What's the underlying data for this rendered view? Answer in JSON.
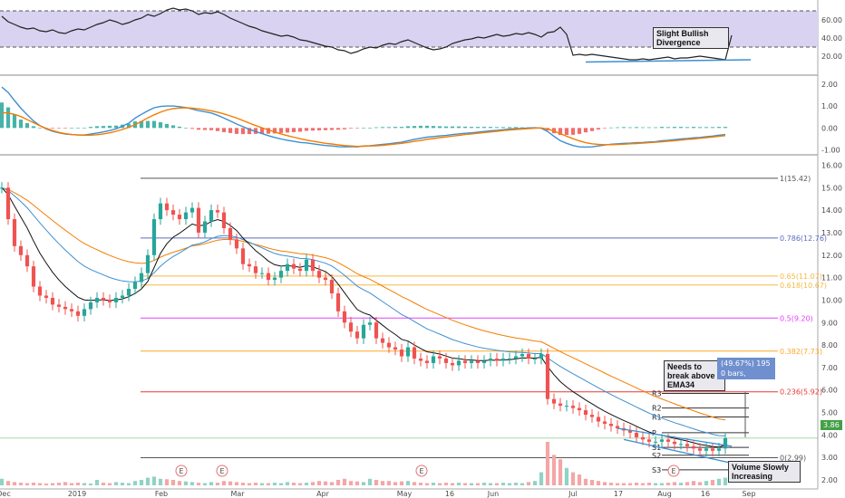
{
  "colors": {
    "up": "#26a69a",
    "down": "#ef5350",
    "rsi_band": "#d9d2f0",
    "ema_fast": "#111111",
    "ema_mid": "#3d8fd1",
    "ema_slow": "#f57c00",
    "macd": "#3d8fd1",
    "signal": "#f57c00"
  },
  "annotations": {
    "rsi_note": "Slight Bullish Divergence",
    "ema_note": "Needs to break above EMA34",
    "volume_note": "Volume Slowly Increasing",
    "measure_line1": "(49.67%) 195",
    "measure_line2": "0 bars,",
    "last_price": "3.86"
  },
  "chart_data": [
    {
      "type": "line",
      "panel": "RSI",
      "yticks": [
        "20.00",
        "40.00",
        "60.00"
      ],
      "ylim": [
        0,
        80
      ],
      "band": [
        30,
        70
      ],
      "series": [
        {
          "values": [
            64,
            58,
            55,
            52,
            50,
            51,
            48,
            47,
            49,
            46,
            45,
            48,
            50,
            49,
            52,
            55,
            57,
            60,
            58,
            55,
            57,
            60,
            62,
            66,
            64,
            67,
            71,
            73,
            71,
            72,
            70,
            66,
            68,
            67,
            69,
            66,
            62,
            59,
            56,
            53,
            51,
            48,
            46,
            44,
            42,
            43,
            41,
            38,
            37,
            35,
            33,
            31,
            30,
            27,
            26,
            23,
            25,
            28,
            30,
            29,
            32,
            34,
            33,
            36,
            38,
            35,
            32,
            29,
            27,
            28,
            30,
            34,
            36,
            38,
            39,
            41,
            40,
            42,
            44,
            42,
            43,
            45,
            44,
            46,
            44,
            41,
            46,
            47,
            52,
            44,
            21,
            22,
            21,
            22,
            21,
            20,
            19,
            18,
            17,
            16,
            16,
            17,
            16,
            17,
            18,
            19,
            17,
            18,
            18,
            19,
            20,
            19,
            18,
            17,
            16,
            43
          ]
        }
      ]
    },
    {
      "type": "line",
      "panel": "MACD",
      "yticks": [
        "-1.00",
        "0.00",
        "1.00",
        "2.00"
      ],
      "ylim": [
        -1.1,
        2.2
      ],
      "series": [
        {
          "values": [
            1.86,
            1.62,
            1.25,
            0.9,
            0.6,
            0.32,
            0.11,
            -0.04,
            -0.15,
            -0.22,
            -0.28,
            -0.3,
            -0.32,
            -0.32,
            -0.28,
            -0.23,
            -0.18,
            -0.12,
            -0.04,
            0.08,
            0.22,
            0.45,
            0.62,
            0.78,
            0.92,
            0.98,
            1.0,
            1.0,
            0.97,
            0.93,
            0.86,
            0.79,
            0.74,
            0.68,
            0.58,
            0.45,
            0.32,
            0.18,
            0.06,
            -0.06,
            -0.16,
            -0.26,
            -0.35,
            -0.43,
            -0.5,
            -0.56,
            -0.61,
            -0.66,
            -0.68,
            -0.72,
            -0.76,
            -0.8,
            -0.82,
            -0.85,
            -0.86,
            -0.85,
            -0.86,
            -0.82,
            -0.81,
            -0.78,
            -0.75,
            -0.72,
            -0.68,
            -0.65,
            -0.58,
            -0.52,
            -0.47,
            -0.42,
            -0.39,
            -0.36,
            -0.34,
            -0.3,
            -0.27,
            -0.24,
            -0.22,
            -0.19,
            -0.16,
            -0.13,
            -0.11,
            -0.08,
            -0.05,
            -0.03,
            -0.02,
            0.0,
            0.01,
            -0.01,
            -0.16,
            -0.38,
            -0.58,
            -0.7,
            -0.8,
            -0.86,
            -0.87,
            -0.86,
            -0.82,
            -0.78,
            -0.74,
            -0.72,
            -0.7,
            -0.69,
            -0.67,
            -0.66,
            -0.64,
            -0.62,
            -0.58,
            -0.56,
            -0.53,
            -0.5,
            -0.48,
            -0.45,
            -0.43,
            -0.4,
            -0.37,
            -0.33,
            -0.3
          ]
        },
        {
          "values": [
            0.7,
            0.68,
            0.62,
            0.52,
            0.38,
            0.24,
            0.1,
            -0.02,
            -0.12,
            -0.2,
            -0.26,
            -0.3,
            -0.32,
            -0.33,
            -0.33,
            -0.31,
            -0.27,
            -0.22,
            -0.15,
            -0.07,
            0.03,
            0.15,
            0.3,
            0.46,
            0.6,
            0.72,
            0.82,
            0.88,
            0.91,
            0.92,
            0.9,
            0.87,
            0.83,
            0.78,
            0.72,
            0.64,
            0.55,
            0.45,
            0.34,
            0.22,
            0.11,
            0.01,
            -0.09,
            -0.18,
            -0.27,
            -0.35,
            -0.42,
            -0.49,
            -0.55,
            -0.6,
            -0.65,
            -0.7,
            -0.73,
            -0.77,
            -0.8,
            -0.82,
            -0.84,
            -0.83,
            -0.82,
            -0.81,
            -0.79,
            -0.76,
            -0.73,
            -0.7,
            -0.66,
            -0.61,
            -0.57,
            -0.52,
            -0.48,
            -0.44,
            -0.41,
            -0.37,
            -0.34,
            -0.3,
            -0.27,
            -0.24,
            -0.21,
            -0.18,
            -0.15,
            -0.12,
            -0.09,
            -0.07,
            -0.05,
            -0.03,
            -0.01,
            0.0,
            -0.05,
            -0.14,
            -0.26,
            -0.38,
            -0.49,
            -0.59,
            -0.67,
            -0.72,
            -0.75,
            -0.76,
            -0.76,
            -0.75,
            -0.74,
            -0.72,
            -0.71,
            -0.69,
            -0.67,
            -0.65,
            -0.63,
            -0.6,
            -0.58,
            -0.55,
            -0.52,
            -0.5,
            -0.47,
            -0.44,
            -0.41,
            -0.38,
            -0.35
          ]
        }
      ]
    },
    {
      "type": "line",
      "panel": "price",
      "xticks": [
        "Dec",
        "2019",
        "Feb",
        "Mar",
        "Apr",
        "May",
        "16",
        "Jun",
        "Jul",
        "17",
        "Aug",
        "16",
        "Sep"
      ],
      "yticks": [
        "2.00",
        "3.00",
        "4.00",
        "5.00",
        "6.00",
        "7.00",
        "8.00",
        "9.00",
        "10.00",
        "11.00",
        "12.00",
        "13.00",
        "14.00",
        "15.00",
        "16.00"
      ],
      "ylim": [
        1.6,
        16.3
      ],
      "series": [
        {
          "values": [
            15.0,
            13.6,
            12.4,
            12.0,
            11.5,
            10.6,
            10.2,
            10.1,
            9.8,
            9.7,
            9.6,
            9.5,
            9.3,
            9.6,
            9.9,
            10.1,
            10.0,
            9.9,
            10.1,
            10.2,
            10.5,
            10.8,
            11.2,
            12.0,
            13.6,
            14.3,
            14.0,
            13.8,
            13.6,
            13.9,
            14.1,
            13.0,
            13.5,
            14.0,
            13.9,
            13.2,
            12.7,
            12.3,
            11.6,
            11.5,
            11.2,
            11.2,
            10.9,
            11.0,
            11.3,
            11.6,
            11.4,
            11.3,
            11.8,
            11.3,
            11.0,
            10.9,
            10.3,
            9.5,
            9.0,
            8.6,
            8.3,
            8.9,
            9.0,
            8.3,
            8.1,
            7.9,
            7.8,
            7.5,
            7.9,
            7.4,
            7.3,
            7.2,
            7.5,
            7.4,
            7.2,
            7.1,
            7.3,
            7.2,
            7.3,
            7.2,
            7.3,
            7.4,
            7.3,
            7.4,
            7.4,
            7.5,
            7.6,
            7.4,
            7.4,
            7.6,
            5.6,
            5.4,
            5.3,
            5.3,
            5.2,
            5.1,
            4.9,
            4.8,
            4.6,
            4.5,
            4.4,
            4.3,
            4.2,
            4.1,
            3.9,
            3.8,
            3.7,
            3.7,
            3.8,
            3.7,
            3.6,
            3.6,
            3.5,
            3.4,
            3.3,
            3.4,
            3.3,
            3.4,
            3.86
          ]
        }
      ]
    },
    {
      "type": "bar",
      "panel": "volume",
      "values": [
        0.3,
        0.2,
        0.15,
        0.12,
        0.1,
        0.12,
        0.1,
        0.08,
        0.1,
        0.12,
        0.15,
        0.1,
        0.12,
        0.1,
        0.08,
        0.25,
        0.12,
        0.1,
        0.15,
        0.12,
        0.1,
        0.2,
        0.25,
        0.35,
        0.4,
        0.3,
        0.28,
        0.25,
        0.2,
        0.18,
        0.15,
        0.12,
        0.1,
        0.15,
        0.12,
        0.2,
        0.18,
        0.15,
        0.12,
        0.1,
        0.12,
        0.1,
        0.1,
        0.12,
        0.1,
        0.15,
        0.12,
        0.1,
        0.12,
        0.15,
        0.2,
        0.18,
        0.15,
        0.25,
        0.3,
        0.2,
        0.18,
        0.15,
        0.3,
        0.25,
        0.2,
        0.2,
        0.15,
        0.18,
        0.2,
        0.15,
        0.12,
        0.1,
        0.12,
        0.1,
        0.12,
        0.1,
        0.12,
        0.1,
        0.1,
        0.1,
        0.12,
        0.1,
        0.1,
        0.12,
        0.1,
        0.12,
        0.1,
        0.15,
        0.2,
        0.6,
        2.0,
        1.4,
        1.2,
        0.8,
        0.6,
        0.5,
        0.3,
        0.25,
        0.2,
        0.15,
        0.12,
        0.1,
        0.1,
        0.1,
        0.12,
        0.1,
        0.12,
        0.1,
        0.1,
        0.12,
        0.15,
        0.12,
        0.15,
        0.2,
        0.15,
        0.2,
        0.25,
        0.3,
        0.35
      ]
    },
    {
      "type": "table",
      "panel": "fibonacci",
      "levels": [
        {
          "label": "1(15.42)",
          "value": 15.42,
          "color": "#555555"
        },
        {
          "label": "0.786(12.76)",
          "value": 12.76,
          "color": "#5c6bc0"
        },
        {
          "label": "0.65(11.07)",
          "value": 11.07,
          "color": "#f5b942"
        },
        {
          "label": "0.618(10.67)",
          "value": 10.67,
          "color": "#f5b942"
        },
        {
          "label": "0.5(9.20)",
          "value": 9.2,
          "color": "#e040fb"
        },
        {
          "label": "0.382(7.73)",
          "value": 7.73,
          "color": "#ffa726"
        },
        {
          "label": "0.236(5.92)",
          "value": 5.92,
          "color": "#e53935"
        },
        {
          "label": "0(2.99)",
          "value": 2.99,
          "color": "#555555"
        }
      ],
      "pivots": [
        {
          "label": "R3",
          "value": 5.85
        },
        {
          "label": "R2",
          "value": 5.2
        },
        {
          "label": "R1",
          "value": 4.8
        },
        {
          "label": "P",
          "value": 4.1
        },
        {
          "label": "S1",
          "value": 3.45
        },
        {
          "label": "S2",
          "value": 3.1
        },
        {
          "label": "S3",
          "value": 2.45
        }
      ]
    }
  ]
}
